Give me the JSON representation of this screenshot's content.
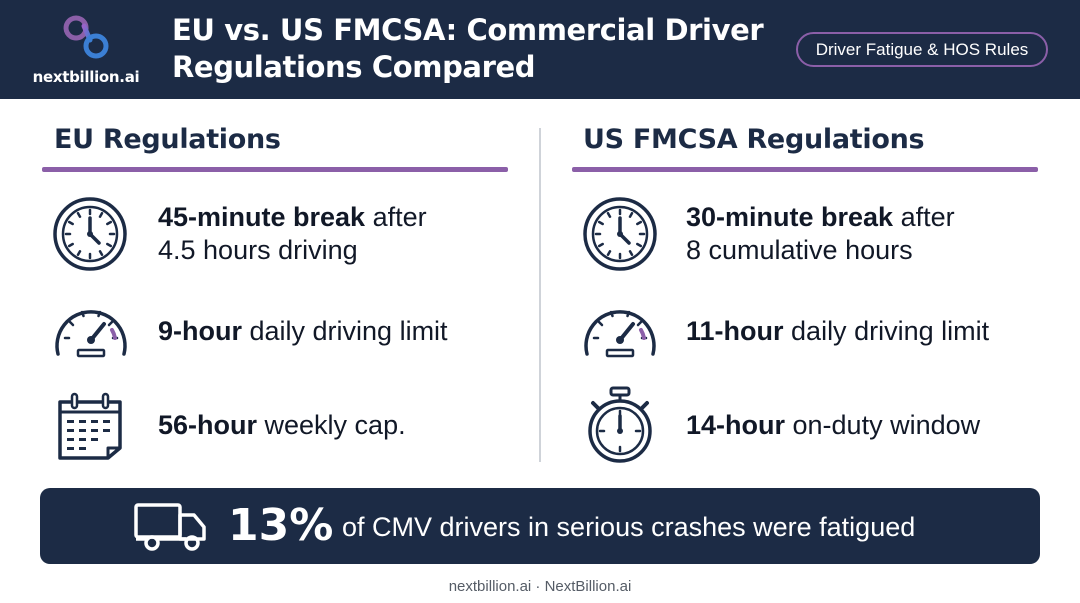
{
  "header": {
    "logo_text": "nextbillion.ai",
    "title_line1": "EU vs. US FMCSA: Commercial Driver",
    "title_line2": "Regulations Compared",
    "pill_label": "Driver Fatigue & HOS Rules"
  },
  "eu": {
    "heading": "EU Regulations",
    "rules": [
      {
        "icon": "clock-icon",
        "bold": "45-minute break",
        "rest": " after",
        "line2": "4.5 hours driving"
      },
      {
        "icon": "speedometer-icon",
        "bold": "9-hour",
        "rest": " daily driving limit"
      },
      {
        "icon": "calendar-icon",
        "bold": "56-hour",
        "rest": " weekly cap."
      }
    ]
  },
  "us": {
    "heading": "US FMCSA Regulations",
    "rules": [
      {
        "icon": "clock-icon",
        "bold": "30-minute break",
        "rest": " after",
        "line2": "8 cumulative hours"
      },
      {
        "icon": "speedometer-icon",
        "bold": "11-hour",
        "rest": " daily driving limit"
      },
      {
        "icon": "stopwatch-icon",
        "bold": "14-hour",
        "rest": " on-duty window"
      }
    ]
  },
  "banner": {
    "icon": "truck-icon",
    "stat": "13%",
    "text": "of CMV drivers in serious crashes were fatigued"
  },
  "footer": {
    "text": "nextbillion.ai · NextBillion.ai"
  },
  "colors": {
    "navy": "#1c2b45",
    "accent": "#8b5fa8",
    "logo_blue": "#3b7fd4"
  }
}
